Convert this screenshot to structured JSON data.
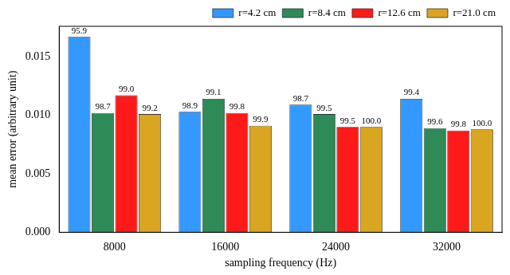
{
  "chart_data": {
    "type": "bar",
    "x_label": "sampling frequency (Hz)",
    "y_label": "mean error (arbitrary unit)",
    "categories": [
      8000,
      16000,
      24000,
      32000
    ],
    "series": [
      {
        "name": "r=4.2 cm",
        "color": "#3399ff",
        "values": [
          0.0167,
          0.0103,
          0.0109,
          0.0114
        ],
        "bar_labels": [
          95.9,
          98.9,
          98.7,
          99.4
        ]
      },
      {
        "name": "r=8.4 cm",
        "color": "#2e8b57",
        "values": [
          0.0102,
          0.0114,
          0.0101,
          0.0089
        ],
        "bar_labels": [
          98.7,
          99.1,
          99.5,
          99.6
        ]
      },
      {
        "name": "r=12.6 cm",
        "color": "#ff1a1a",
        "values": [
          0.0117,
          0.0102,
          0.009,
          0.0087
        ],
        "bar_labels": [
          99.0,
          99.8,
          99.5,
          99.8
        ]
      },
      {
        "name": "r=21.0 cm",
        "color": "#daa520",
        "values": [
          0.0101,
          0.0091,
          0.009,
          0.0088
        ],
        "bar_labels": [
          99.2,
          99.9,
          100.0,
          100.0
        ]
      }
    ],
    "ylim": [
      0,
      0.0176
    ],
    "yticks": [
      {
        "value": 0,
        "label": "0.000"
      },
      {
        "value": 0.005,
        "label": "0.005"
      },
      {
        "value": 0.01,
        "label": "0.010"
      },
      {
        "value": 0.015,
        "label": "0.015"
      }
    ],
    "grid": false,
    "legend": "upper right"
  }
}
